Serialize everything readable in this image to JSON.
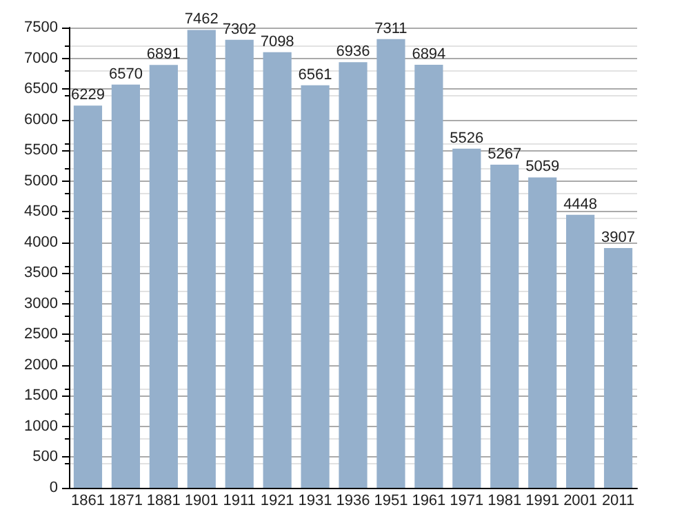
{
  "chart_data": {
    "type": "bar",
    "categories": [
      "1861",
      "1871",
      "1881",
      "1901",
      "1911",
      "1921",
      "1931",
      "1936",
      "1951",
      "1961",
      "1971",
      "1981",
      "1991",
      "2001",
      "2011"
    ],
    "values": [
      6229,
      6570,
      6891,
      7462,
      7302,
      7098,
      6561,
      6936,
      7311,
      6894,
      5526,
      5267,
      5059,
      4448,
      3907
    ],
    "color": "#95b0cc",
    "ylim": [
      0,
      7500
    ],
    "yticks": [
      0,
      500,
      1000,
      1500,
      2000,
      2500,
      3000,
      3500,
      4000,
      4500,
      5000,
      5500,
      6000,
      6500,
      7000,
      7500
    ],
    "grid": "y",
    "data_labels": true
  }
}
